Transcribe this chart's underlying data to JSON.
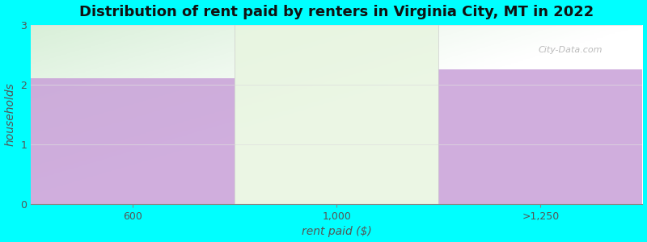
{
  "title": "Distribution of rent paid by renters in Virginia City, MT in 2022",
  "xlabel": "rent paid ($)",
  "ylabel": "households",
  "categories": [
    "600",
    "1,000",
    ">1,250"
  ],
  "values": [
    2.1,
    0.0,
    2.25
  ],
  "bar_colors": [
    "#c8a0d8",
    "#ddeedd",
    "#c8a0d8"
  ],
  "bg_top_left": "#d8f0d8",
  "bg_top_right": "#f0f4f8",
  "bg_bottom": "#ffffff",
  "ylim": [
    0,
    3
  ],
  "yticks": [
    0,
    1,
    2,
    3
  ],
  "background_color": "#00ffff",
  "plot_bg_color": "#ffffff",
  "title_fontsize": 13,
  "axis_label_fontsize": 10,
  "tick_fontsize": 9,
  "watermark": "City-Data.com"
}
